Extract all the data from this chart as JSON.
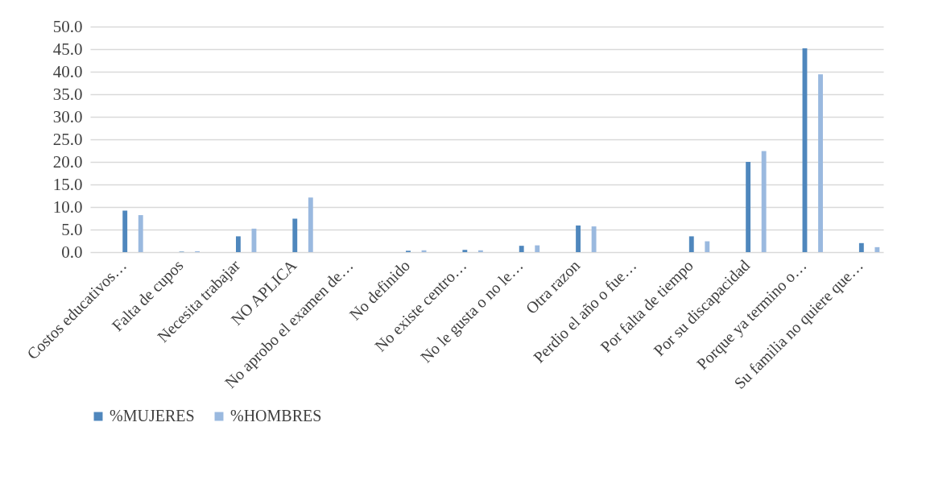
{
  "chart_data": {
    "type": "bar",
    "categories": [
      "Costos educativos…",
      "Falta de cupos",
      "Necesita trabajar",
      "NO APLICA",
      "No aprobo el examen de…",
      "No definido",
      "No existe centro…",
      "No le gusta o no le…",
      "Otra razon",
      "Perdio el año o fue…",
      "Por falta de tiempo",
      "Por su discapacidad",
      "Porque ya termino o…",
      "Su familia no quiere que…"
    ],
    "series": [
      {
        "name": "%MUJERES",
        "color": "#4f87bd",
        "values": [
          9.2,
          0.1,
          3.5,
          7.4,
          0,
          0.3,
          0.5,
          1.4,
          5.9,
          0,
          3.5,
          20.0,
          45.2,
          2.0
        ]
      },
      {
        "name": "%HOMBRES",
        "color": "#9ab9df",
        "values": [
          8.2,
          0.2,
          5.2,
          12.1,
          0,
          0.4,
          0.4,
          1.5,
          5.7,
          0,
          2.4,
          22.4,
          39.4,
          1.1
        ]
      }
    ],
    "ylim": [
      0,
      50
    ],
    "yticks": [
      {
        "value": 0,
        "label": "0.0"
      },
      {
        "value": 5,
        "label": "5.0"
      },
      {
        "value": 10,
        "label": "10.0"
      },
      {
        "value": 15,
        "label": "15.0"
      },
      {
        "value": 20,
        "label": "20.0"
      },
      {
        "value": 25,
        "label": "25.0"
      },
      {
        "value": 30,
        "label": "30.0"
      },
      {
        "value": 35,
        "label": "35.0"
      },
      {
        "value": 40,
        "label": "40.0"
      },
      {
        "value": 45,
        "label": "45.0"
      },
      {
        "value": 50,
        "label": "50.0"
      }
    ],
    "grid": "y",
    "legend": "bottom"
  }
}
